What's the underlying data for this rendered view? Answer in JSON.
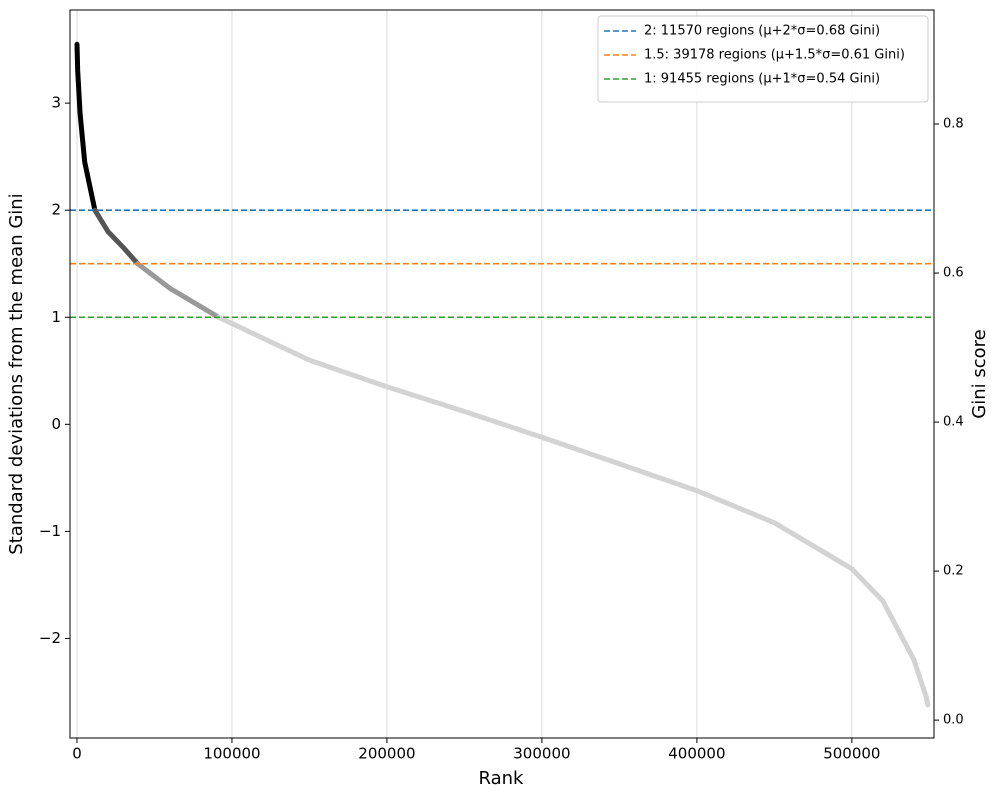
{
  "chart_data": {
    "type": "line",
    "xlabel": "Rank",
    "ylabel": "Standard deviations from the mean Gini",
    "y2label": "Gini score",
    "xlim": [
      -4500,
      553000
    ],
    "ylim": [
      -2.93,
      3.87
    ],
    "y2lim": [
      -0.024,
      0.953
    ],
    "xticks": [
      0,
      100000,
      200000,
      300000,
      400000,
      500000
    ],
    "yticks": [
      {
        "value": -2,
        "label": "−2"
      },
      {
        "value": -1,
        "label": "−1"
      },
      0,
      1,
      2,
      3
    ],
    "y2ticks": [
      {
        "value": 0,
        "label": "0.0"
      },
      0.2,
      0.4,
      0.6,
      0.8
    ],
    "grid": "x",
    "legend": "upper right",
    "series": [
      {
        "name": "2: 11570 regions (μ+2*σ=0.68 Gini)",
        "color": "#1f77b4",
        "value": 2
      },
      {
        "name": "1.5: 39178 regions (μ+1.5*σ=0.61 Gini)",
        "color": "#ff7f0e",
        "value": 1.5
      },
      {
        "name": "1: 91455 regions (μ+1*σ=0.54 Gini)",
        "color": "#2ca02c",
        "value": 1
      }
    ],
    "curve": [
      {
        "color": "#000000",
        "x": [
          0,
          500,
          2000,
          5000,
          11570
        ],
        "values": [
          3.55,
          3.3,
          2.9,
          2.45,
          2.0
        ]
      },
      {
        "color": "#555555",
        "x": [
          11570,
          20000,
          30000,
          39178
        ],
        "values": [
          2.0,
          1.8,
          1.65,
          1.5
        ]
      },
      {
        "color": "#999999",
        "x": [
          39178,
          60000,
          91455
        ],
        "values": [
          1.5,
          1.27,
          1.0
        ]
      },
      {
        "color": "#d3d3d3",
        "x": [
          91455,
          150000,
          200000,
          250000,
          300000,
          350000,
          400000,
          450000,
          500000,
          520000,
          540000,
          548000,
          549000
        ],
        "values": [
          1.0,
          0.6,
          0.35,
          0.12,
          -0.12,
          -0.37,
          -0.62,
          -0.92,
          -1.35,
          -1.65,
          -2.2,
          -2.55,
          -2.62
        ]
      }
    ]
  }
}
